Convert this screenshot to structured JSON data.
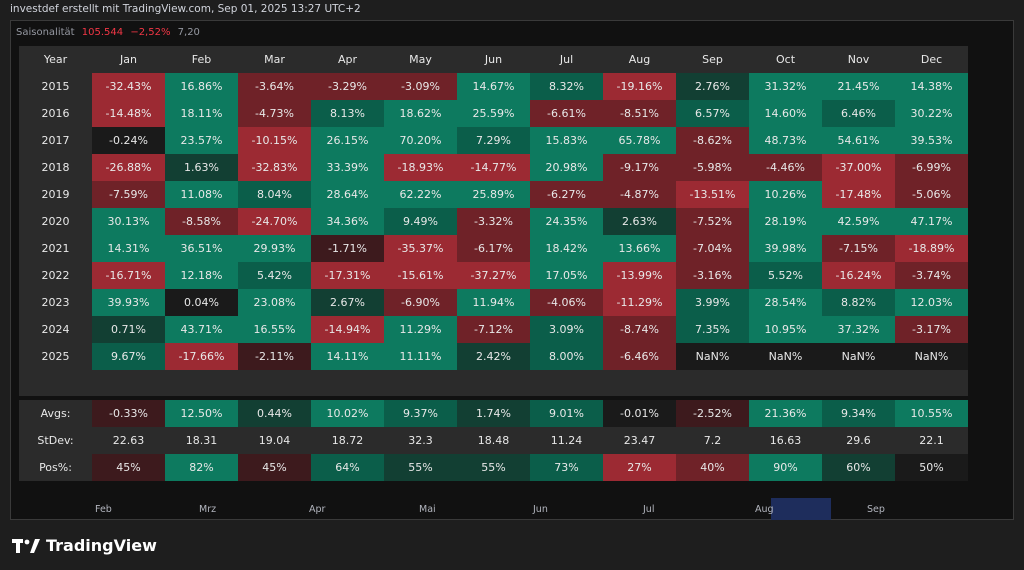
{
  "header": {
    "text": "investdef erstellt mit TradingView.com, Sep 01, 2025 13:27 UTC+2"
  },
  "indicator": {
    "name": "Saisonalität",
    "value1": "105.544",
    "value2": "−2,52%",
    "value3": "7,20"
  },
  "table": {
    "columns": [
      "Year",
      "Jan",
      "Feb",
      "Mar",
      "Apr",
      "May",
      "Jun",
      "Jul",
      "Aug",
      "Sep",
      "Oct",
      "Nov",
      "Dec"
    ],
    "rows": [
      {
        "year": "2015",
        "values": [
          "-32.43%",
          "16.86%",
          "-3.64%",
          "-3.29%",
          "-3.09%",
          "14.67%",
          "8.32%",
          "-19.16%",
          "2.76%",
          "31.32%",
          "21.45%",
          "14.38%"
        ]
      },
      {
        "year": "2016",
        "values": [
          "-14.48%",
          "18.11%",
          "-4.73%",
          "8.13%",
          "18.62%",
          "25.59%",
          "-6.61%",
          "-8.51%",
          "6.57%",
          "14.60%",
          "6.46%",
          "30.22%"
        ]
      },
      {
        "year": "2017",
        "values": [
          "-0.24%",
          "23.57%",
          "-10.15%",
          "26.15%",
          "70.20%",
          "7.29%",
          "15.83%",
          "65.78%",
          "-8.62%",
          "48.73%",
          "54.61%",
          "39.53%"
        ]
      },
      {
        "year": "2018",
        "values": [
          "-26.88%",
          "1.63%",
          "-32.83%",
          "33.39%",
          "-18.93%",
          "-14.77%",
          "20.98%",
          "-9.17%",
          "-5.98%",
          "-4.46%",
          "-37.00%",
          "-6.99%"
        ]
      },
      {
        "year": "2019",
        "values": [
          "-7.59%",
          "11.08%",
          "8.04%",
          "28.64%",
          "62.22%",
          "25.89%",
          "-6.27%",
          "-4.87%",
          "-13.51%",
          "10.26%",
          "-17.48%",
          "-5.06%"
        ]
      },
      {
        "year": "2020",
        "values": [
          "30.13%",
          "-8.58%",
          "-24.70%",
          "34.36%",
          "9.49%",
          "-3.32%",
          "24.35%",
          "2.63%",
          "-7.52%",
          "28.19%",
          "42.59%",
          "47.17%"
        ]
      },
      {
        "year": "2021",
        "values": [
          "14.31%",
          "36.51%",
          "29.93%",
          "-1.71%",
          "-35.37%",
          "-6.17%",
          "18.42%",
          "13.66%",
          "-7.04%",
          "39.98%",
          "-7.15%",
          "-18.89%"
        ]
      },
      {
        "year": "2022",
        "values": [
          "-16.71%",
          "12.18%",
          "5.42%",
          "-17.31%",
          "-15.61%",
          "-37.27%",
          "17.05%",
          "-13.99%",
          "-3.16%",
          "5.52%",
          "-16.24%",
          "-3.74%"
        ]
      },
      {
        "year": "2023",
        "values": [
          "39.93%",
          "0.04%",
          "23.08%",
          "2.67%",
          "-6.90%",
          "11.94%",
          "-4.06%",
          "-11.29%",
          "3.99%",
          "28.54%",
          "8.82%",
          "12.03%"
        ]
      },
      {
        "year": "2024",
        "values": [
          "0.71%",
          "43.71%",
          "16.55%",
          "-14.94%",
          "11.29%",
          "-7.12%",
          "3.09%",
          "-8.74%",
          "7.35%",
          "10.95%",
          "37.32%",
          "-3.17%"
        ]
      },
      {
        "year": "2025",
        "values": [
          "9.67%",
          "-17.66%",
          "-2.11%",
          "14.11%",
          "11.11%",
          "2.42%",
          "8.00%",
          "-6.46%",
          "NaN%",
          "NaN%",
          "NaN%",
          "NaN%"
        ]
      }
    ],
    "stats": [
      {
        "label": "Avgs:",
        "values": [
          "-0.33%",
          "12.50%",
          "0.44%",
          "10.02%",
          "9.37%",
          "1.74%",
          "9.01%",
          "-0.01%",
          "-2.52%",
          "21.36%",
          "9.34%",
          "10.55%"
        ],
        "color": "sign"
      },
      {
        "label": "StDev:",
        "values": [
          "22.63",
          "18.31",
          "19.04",
          "18.72",
          "32.3",
          "18.48",
          "11.24",
          "23.47",
          "7.2",
          "16.63",
          "29.6",
          "22.1"
        ],
        "color": "none"
      },
      {
        "label": "Pos%:",
        "values": [
          "45%",
          "82%",
          "45%",
          "64%",
          "55%",
          "55%",
          "73%",
          "27%",
          "40%",
          "90%",
          "60%",
          "50%"
        ],
        "color": "pos"
      }
    ]
  },
  "time_axis": {
    "labels": [
      "Feb",
      "Mrz",
      "Apr",
      "Mai",
      "Jun",
      "Jul",
      "Aug",
      "Sep"
    ]
  },
  "brand": {
    "name": "TradingView"
  },
  "colors": {
    "pos_strong": "#0d7a5f",
    "pos_mid": "#0b5e4a",
    "pos_weak": "#123f33",
    "neg_strong": "#9c2a33",
    "neg_mid": "#6f2228",
    "neg_weak": "#3d1a1d",
    "neutral": "#1a1a1a",
    "stat_bg": "#2b2b2b"
  }
}
